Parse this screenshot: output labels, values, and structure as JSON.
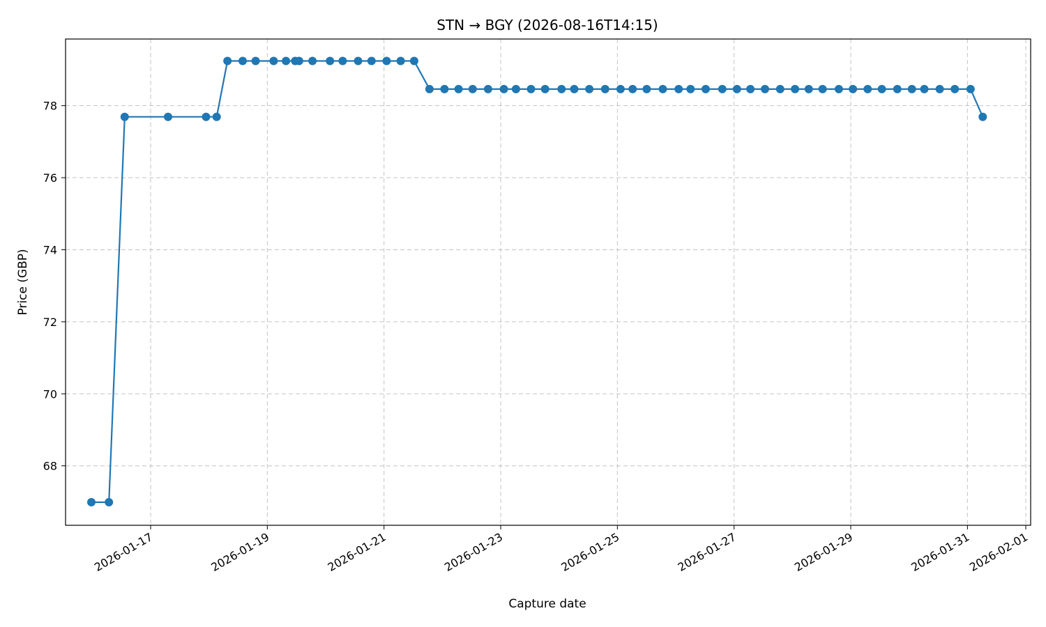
{
  "chart_data": {
    "type": "line",
    "title": "STN → BGY (2026-08-16T14:15)",
    "xlabel": "Capture date",
    "ylabel": "Price (GBP)",
    "x_type": "datetime",
    "xlim": [
      "2026-01-15T13:00",
      "2026-02-01T02:00"
    ],
    "ylim": [
      66.35,
      79.85
    ],
    "grid": true,
    "line_color": "#1f77b4",
    "marker": "circle",
    "x_ticks": [
      "2026-01-17",
      "2026-01-19",
      "2026-01-21",
      "2026-01-23",
      "2026-01-25",
      "2026-01-27",
      "2026-01-29",
      "2026-01-31",
      "2026-02-01"
    ],
    "y_ticks": [
      68,
      70,
      72,
      74,
      76,
      78
    ],
    "series": [
      {
        "x": [
          "2026-01-15T23:36",
          "2026-01-16T06:51",
          "2026-01-16T13:20",
          "2026-01-17T07:10",
          "2026-01-17T22:48",
          "2026-01-18T03:10",
          "2026-01-18T07:36",
          "2026-01-18T13:51",
          "2026-01-18T19:11",
          "2026-01-19T02:35",
          "2026-01-19T07:41",
          "2026-01-19T11:27",
          "2026-01-19T13:04",
          "2026-01-19T18:35",
          "2026-01-20T01:47",
          "2026-01-20T06:59",
          "2026-01-20T13:20",
          "2026-01-20T18:52",
          "2026-01-21T01:04",
          "2026-01-21T06:52",
          "2026-01-21T12:23",
          "2026-01-21T18:42",
          "2026-01-22T00:52",
          "2026-01-22T06:40",
          "2026-01-22T12:28",
          "2026-01-22T18:48",
          "2026-01-23T01:19",
          "2026-01-23T06:16",
          "2026-01-23T12:29",
          "2026-01-23T18:16",
          "2026-01-24T01:03",
          "2026-01-24T06:15",
          "2026-01-24T12:28",
          "2026-01-24T18:58",
          "2026-01-25T01:19",
          "2026-01-25T06:16",
          "2026-01-25T12:04",
          "2026-01-25T18:41",
          "2026-01-26T01:12",
          "2026-01-26T06:07",
          "2026-01-26T12:20",
          "2026-01-26T19:09",
          "2026-01-27T01:10",
          "2026-01-27T06:43",
          "2026-01-27T12:42",
          "2026-01-27T18:57",
          "2026-01-28T01:04",
          "2026-01-28T06:43",
          "2026-01-28T12:25",
          "2026-01-28T19:05",
          "2026-01-29T00:53",
          "2026-01-29T06:57",
          "2026-01-29T12:47",
          "2026-01-29T19:09",
          "2026-01-30T01:09",
          "2026-01-30T06:16",
          "2026-01-30T12:36",
          "2026-01-30T18:48",
          "2026-01-31T01:17",
          "2026-01-31T06:17"
        ],
        "y": [
          66.99,
          66.99,
          77.69,
          77.69,
          77.69,
          77.69,
          79.24,
          79.24,
          79.24,
          79.24,
          79.24,
          79.24,
          79.24,
          79.24,
          79.24,
          79.24,
          79.24,
          79.24,
          79.24,
          79.24,
          79.24,
          78.46,
          78.46,
          78.46,
          78.46,
          78.46,
          78.46,
          78.46,
          78.46,
          78.46,
          78.46,
          78.46,
          78.46,
          78.46,
          78.46,
          78.46,
          78.46,
          78.46,
          78.46,
          78.46,
          78.46,
          78.46,
          78.46,
          78.46,
          78.46,
          78.46,
          78.46,
          78.46,
          78.46,
          78.46,
          78.46,
          78.46,
          78.46,
          78.46,
          78.46,
          78.46,
          78.46,
          78.46,
          78.46,
          77.69
        ]
      }
    ]
  }
}
